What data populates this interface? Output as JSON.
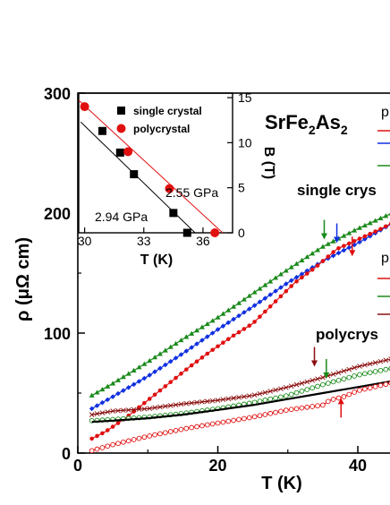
{
  "chart_data": [
    {
      "type": "line",
      "xlabel": "T (K)",
      "ylabel": "ρ (μΩ cm)",
      "xlim": [
        0,
        46
      ],
      "ylim": [
        0,
        300
      ],
      "xticks": [
        0,
        20,
        40
      ],
      "yticks": [
        0,
        100,
        200,
        300
      ],
      "annotations": {
        "compound": "SrFe",
        "compound_sub1": "2",
        "compound_mid": "As",
        "compound_sub2": "2",
        "single_group": "single crys",
        "poly_group": "polycrys",
        "legend_head_1": "p",
        "legend_head_2": "p"
      },
      "series": [
        {
          "group": "single crystal",
          "color": "#1a8a1a",
          "marker": "triangle",
          "line": "#1a8a1a",
          "x": [
            2,
            5,
            10,
            15,
            20,
            25,
            30,
            35,
            40,
            46
          ],
          "y": [
            48,
            58,
            76,
            95,
            113,
            133,
            153,
            172,
            187,
            203
          ]
        },
        {
          "group": "single crystal",
          "color": "#1030e0",
          "marker": "diamond",
          "line": "#1030e0",
          "x": [
            2,
            5,
            10,
            15,
            20,
            25,
            30,
            35,
            40,
            46
          ],
          "y": [
            37,
            47,
            64,
            83,
            103,
            122,
            142,
            160,
            175,
            195
          ]
        },
        {
          "group": "single crystal",
          "color": "#e01010",
          "marker": "circle",
          "line": "#e01010",
          "x": [
            2,
            4,
            7,
            10,
            13,
            16,
            19,
            22,
            25,
            28,
            31,
            34,
            37,
            40,
            43,
            46
          ],
          "y": [
            12,
            18,
            30,
            44,
            58,
            72,
            85,
            97,
            108,
            125,
            142,
            155,
            170,
            178,
            186,
            195
          ]
        },
        {
          "group": "polycrystal",
          "color": "#8b1010",
          "marker": "x",
          "line": "#8b1010",
          "x": [
            2,
            5,
            10,
            15,
            20,
            25,
            30,
            35,
            40,
            46
          ],
          "y": [
            32,
            35,
            37,
            41,
            44,
            48,
            55,
            63,
            72,
            80
          ]
        },
        {
          "group": "polycrystal",
          "color": "#1a8a1a",
          "marker": "open-circle",
          "line": "#1a8a1a",
          "x": [
            2,
            5,
            10,
            15,
            20,
            25,
            30,
            35,
            40,
            46
          ],
          "y": [
            27,
            28,
            30,
            33,
            37,
            42,
            48,
            57,
            65,
            72
          ]
        },
        {
          "group": "polycrystal",
          "color": "#000000",
          "marker": "none",
          "line": "#000000",
          "x": [
            2,
            5,
            10,
            15,
            20,
            25,
            30,
            35,
            40,
            46
          ],
          "y": [
            26,
            27,
            29,
            32,
            36,
            40,
            45,
            50,
            55,
            61
          ]
        },
        {
          "group": "polycrystal",
          "color": "#e01010",
          "marker": "open-circle",
          "line": "#e01010",
          "x": [
            2,
            5,
            10,
            15,
            20,
            25,
            30,
            35,
            36,
            38,
            40,
            46
          ],
          "y": [
            2,
            7,
            14,
            20,
            25,
            30,
            36,
            40,
            44,
            47,
            52,
            60
          ]
        }
      ],
      "arrows": [
        {
          "x": 35.2,
          "y_tip": 178,
          "color": "#1a8a1a",
          "dir": "down"
        },
        {
          "x": 37.0,
          "y_tip": 175,
          "color": "#1030e0",
          "dir": "down"
        },
        {
          "x": 39.2,
          "y_tip": 164,
          "color": "#e01010",
          "dir": "down"
        },
        {
          "x": 33.8,
          "y_tip": 72,
          "color": "#8b1010",
          "dir": "down"
        },
        {
          "x": 35.5,
          "y_tip": 62,
          "color": "#1a8a1a",
          "dir": "down"
        },
        {
          "x": 37.6,
          "y_tip": 46,
          "color": "#e01010",
          "dir": "up"
        }
      ]
    },
    {
      "type": "scatter",
      "xlabel": "T (K)",
      "ylabel": "B (T)",
      "xlim": [
        29.7,
        37.5
      ],
      "ylim": [
        0,
        15.5
      ],
      "xticks": [
        30,
        33,
        36
      ],
      "yticks": [
        0,
        5,
        10,
        15
      ],
      "legend": [
        {
          "label": "single crystal",
          "marker": "square",
          "color": "#000000"
        },
        {
          "label": "polycrystal",
          "marker": "circle",
          "color": "#e01010"
        }
      ],
      "labels": {
        "single_pressure": "2.94 GPa",
        "poly_pressure": "2.55 GPa"
      },
      "series": [
        {
          "name": "single crystal",
          "color": "#000000",
          "marker": "square",
          "x": [
            30.9,
            31.8,
            32.5,
            34.5,
            35.2
          ],
          "y": [
            11.3,
            8.9,
            6.5,
            2.2,
            0
          ],
          "fit": {
            "x": [
              29.8,
              35.6
            ],
            "y": [
              12.3,
              0
            ]
          }
        },
        {
          "name": "polycrystal",
          "color": "#e01010",
          "marker": "circle",
          "x": [
            30.0,
            32.2,
            34.3,
            36.6
          ],
          "y": [
            14.0,
            9.0,
            4.9,
            0
          ],
          "fit": {
            "x": [
              29.7,
              37.0
            ],
            "y": [
              14.7,
              0
            ]
          }
        }
      ]
    }
  ]
}
